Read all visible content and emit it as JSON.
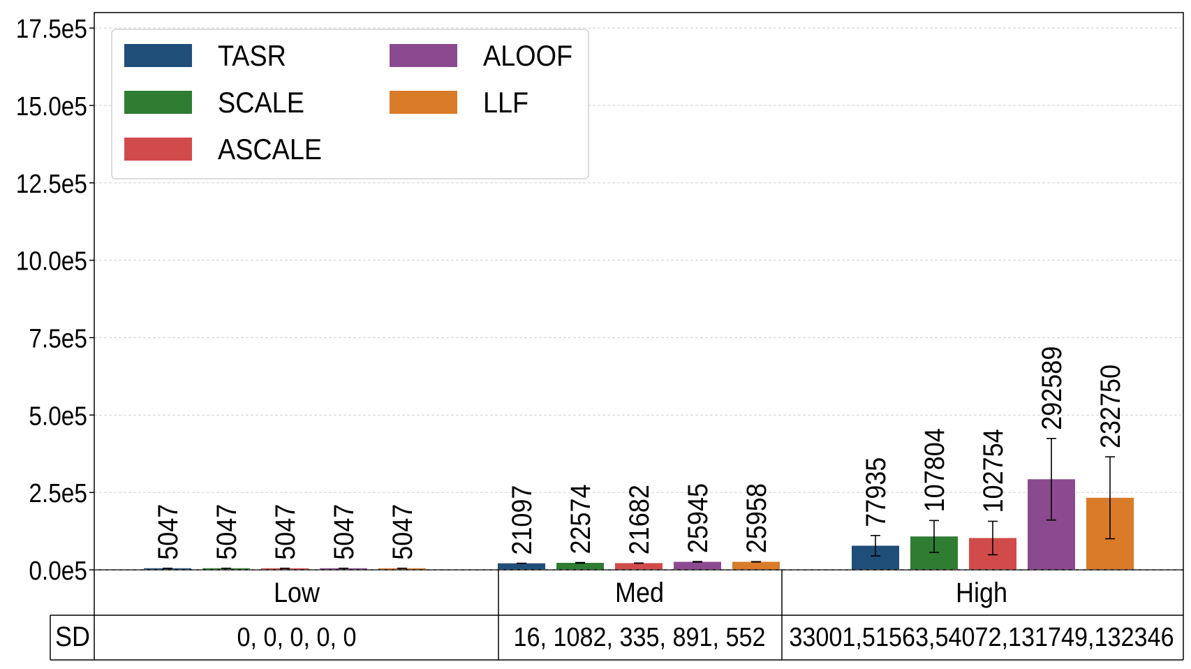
{
  "chart_data": {
    "type": "bar",
    "title": "",
    "xlabel": "",
    "ylabel": "",
    "ylim": [
      0,
      1800000
    ],
    "yticks": [
      0,
      250000,
      500000,
      750000,
      1000000,
      1250000,
      1500000,
      1750000
    ],
    "ytick_labels": [
      "0.0e5",
      "2.5e5",
      "5.0e5",
      "7.5e5",
      "10.0e5",
      "12.5e5",
      "15.0e5",
      "17.5e5"
    ],
    "grid": "horizontal dashed",
    "legend_position": "top-left",
    "categories": [
      "Low",
      "Med",
      "High"
    ],
    "series": [
      {
        "name": "TASR",
        "color": "#1f4e79",
        "values": [
          5047,
          21097,
          77935
        ],
        "value_labels": [
          "5047",
          "21097",
          "77935"
        ],
        "sd": [
          0,
          16,
          33001
        ]
      },
      {
        "name": "SCALE",
        "color": "#2e7d32",
        "values": [
          5047,
          22574,
          107804
        ],
        "value_labels": [
          "5047",
          "22574",
          "107804"
        ],
        "sd": [
          0,
          1082,
          51563
        ]
      },
      {
        "name": "ASCALE",
        "color": "#d24b4b",
        "values": [
          5047,
          21682,
          102754
        ],
        "value_labels": [
          "5047",
          "21682",
          "102754"
        ],
        "sd": [
          0,
          335,
          54072
        ]
      },
      {
        "name": "ALOOF",
        "color": "#8b4a8f",
        "values": [
          5047,
          25945,
          292589
        ],
        "value_labels": [
          "5047",
          "25945",
          "292589"
        ],
        "sd": [
          0,
          891,
          131749
        ]
      },
      {
        "name": "LLF",
        "color": "#d97b29",
        "values": [
          5047,
          25958,
          232750
        ],
        "value_labels": [
          "5047",
          "25958",
          "232750"
        ],
        "sd": [
          0,
          552,
          132346
        ]
      }
    ],
    "table": {
      "row_label": "SD",
      "cells": [
        "0, 0, 0, 0, 0",
        "16, 1082, 335, 891, 552",
        "33001,51563,54072,131749,132346"
      ]
    }
  }
}
